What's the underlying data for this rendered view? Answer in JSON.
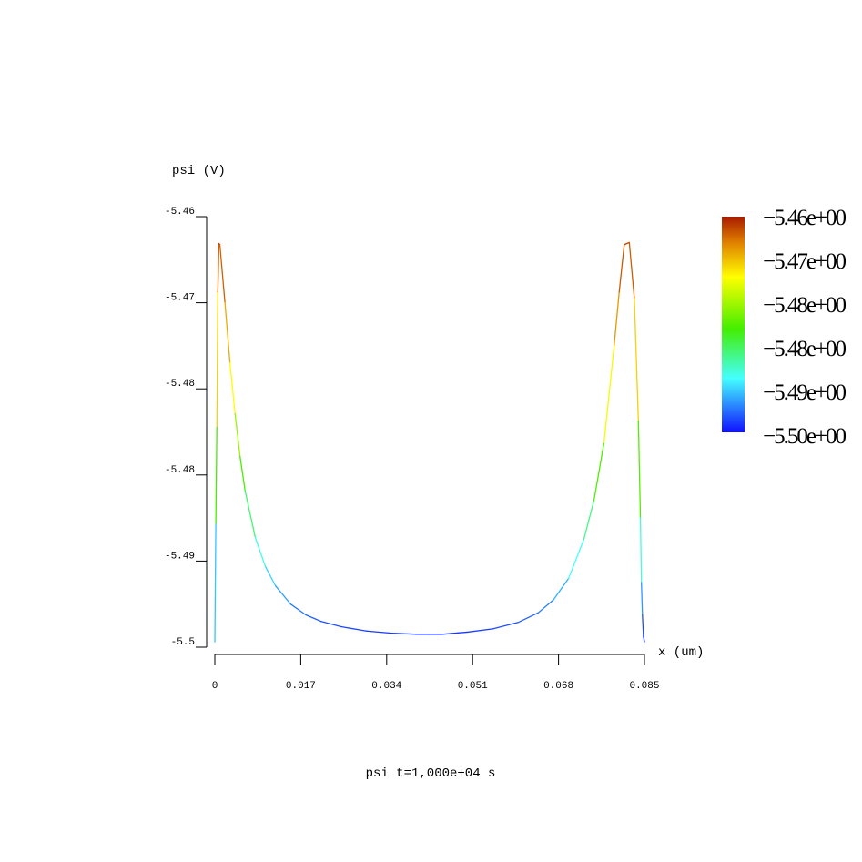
{
  "chart_data": {
    "type": "line",
    "title": "psi t=1,000e+04 s",
    "xlabel": "x (um)",
    "ylabel": "psi (V)",
    "xlim": [
      0,
      0.085
    ],
    "ylim": [
      -5.5,
      -5.46
    ],
    "x_ticks": [
      "0",
      "0.017",
      "0.034",
      "0.051",
      "0.068",
      "0.085"
    ],
    "y_ticks": [
      "-5.5",
      "-5.49",
      "-5.48",
      "-5.48",
      "-5.47",
      "-5.46"
    ],
    "grid": false,
    "series": [
      {
        "x": [
          0,
          0.0002,
          0.0004,
          0.0006,
          0.0008,
          0.001,
          0.002,
          0.003,
          0.004,
          0.005,
          0.006,
          0.008,
          0.01,
          0.012,
          0.015,
          0.018,
          0.021,
          0.025,
          0.03,
          0.035,
          0.04,
          0.0425,
          0.045,
          0.05,
          0.055,
          0.06,
          0.064,
          0.067,
          0.07,
          0.073,
          0.075,
          0.077,
          0.079,
          0.08,
          0.081,
          0.082,
          0.083,
          0.0838,
          0.0842,
          0.0844,
          0.0846,
          0.0848,
          0.085
        ],
        "y": [
          -5.4995,
          -5.4885,
          -5.4795,
          -5.467,
          -5.4625,
          -5.4626,
          -5.468,
          -5.4736,
          -5.4783,
          -5.4823,
          -5.4855,
          -5.4898,
          -5.4925,
          -5.4943,
          -5.496,
          -5.497,
          -5.4976,
          -5.4981,
          -5.4985,
          -5.4987,
          -5.4988,
          -5.4988,
          -5.4988,
          -5.4986,
          -5.4983,
          -5.4977,
          -5.4968,
          -5.4956,
          -5.4936,
          -5.49,
          -5.4864,
          -5.481,
          -5.472,
          -5.467,
          -5.4626,
          -5.4624,
          -5.4676,
          -5.479,
          -5.488,
          -5.494,
          -5.497,
          -5.499,
          -5.4995
        ]
      }
    ],
    "colorbar": {
      "labels": [
        "-5.46e+00",
        "-5.47e+00",
        "-5.48e+00",
        "-5.48e+00",
        "-5.49e+00",
        "-5.50e+00"
      ],
      "colors": [
        "#b02200",
        "#ffff00",
        "#44ee00",
        "#44ffff",
        "#1010ff"
      ]
    }
  }
}
